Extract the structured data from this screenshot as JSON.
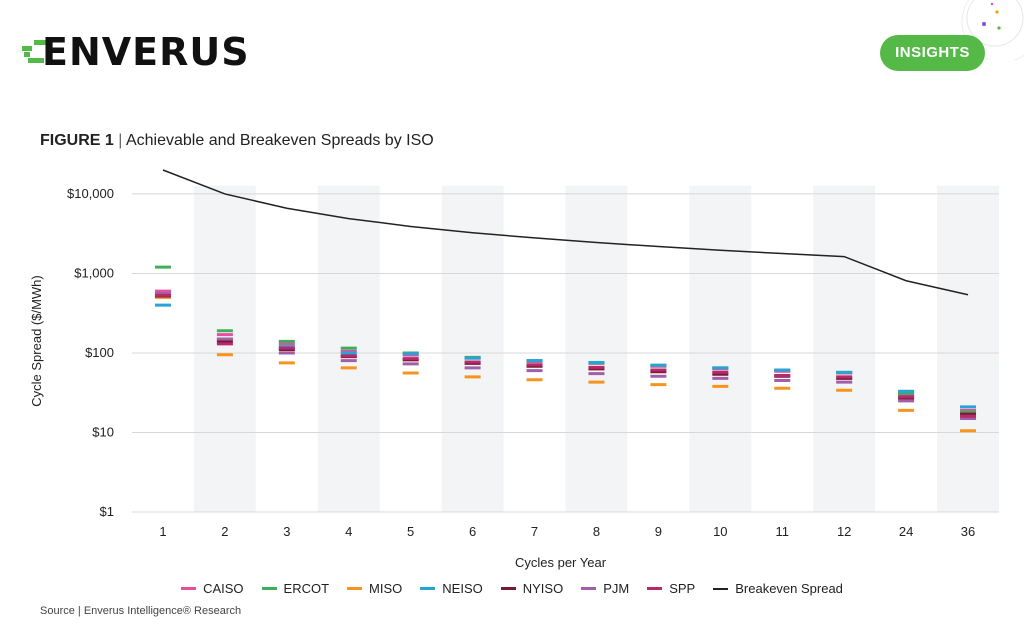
{
  "brand": {
    "logo_text": "ENVERUS",
    "logo_green": "#55b947",
    "badge_label": "INSIGHTS"
  },
  "figure": {
    "label": "FIGURE 1",
    "separator": "|",
    "title": "Achievable and Breakeven Spreads by ISO"
  },
  "source": "Source | Enverus Intelligence® Research",
  "chart_data": {
    "type": "scatter",
    "title": "Achievable and Breakeven Spreads by ISO",
    "xlabel": "Cycles per Year",
    "ylabel": "Cycle Spread ($/MWh)",
    "yscale": "log",
    "ylim": [
      1,
      20000
    ],
    "yticks": [
      1,
      10,
      100,
      1000,
      10000
    ],
    "ytick_labels": [
      "$1",
      "$10",
      "$100",
      "$1,000",
      "$10,000"
    ],
    "categories": [
      "1",
      "2",
      "3",
      "4",
      "5",
      "6",
      "7",
      "8",
      "9",
      "10",
      "11",
      "12",
      "24",
      "36"
    ],
    "series": [
      {
        "name": "CAISO",
        "color": "#e54fa0",
        "marker": "dash",
        "values": [
          600,
          170,
          130,
          105,
          94,
          86,
          78,
          74,
          68,
          63,
          59,
          56,
          30,
          19
        ]
      },
      {
        "name": "ERCOT",
        "color": "#3fae5a",
        "marker": "dash",
        "values": [
          1200,
          190,
          140,
          115,
          100,
          88,
          80,
          75,
          70,
          65,
          61,
          57,
          31,
          18
        ]
      },
      {
        "name": "MISO",
        "color": "#f7941d",
        "marker": "dash",
        "values": [
          500,
          95,
          75,
          65,
          56,
          50,
          46,
          43,
          40,
          38,
          36,
          34,
          19,
          10.5
        ]
      },
      {
        "name": "NEISO",
        "color": "#27a3d5",
        "marker": "dash",
        "values": [
          400,
          150,
          120,
          100,
          98,
          86,
          80,
          76,
          70,
          65,
          61,
          57,
          33,
          21
        ]
      },
      {
        "name": "NYISO",
        "color": "#7a1a33",
        "marker": "dash",
        "values": [
          520,
          140,
          110,
          90,
          82,
          74,
          68,
          63,
          58,
          54,
          51,
          48,
          27,
          17
        ]
      },
      {
        "name": "PJM",
        "color": "#a35ea8",
        "marker": "dash",
        "values": [
          560,
          150,
          100,
          80,
          73,
          65,
          60,
          55,
          51,
          48,
          45,
          43,
          25,
          15
        ]
      },
      {
        "name": "SPP",
        "color": "#b52a6a",
        "marker": "dash",
        "values": [
          530,
          130,
          115,
          92,
          85,
          77,
          71,
          66,
          61,
          57,
          52,
          50,
          28,
          16
        ]
      },
      {
        "name": "Breakeven Spread",
        "color": "#222222",
        "marker": "line",
        "values": [
          20000,
          10000,
          6600,
          4900,
          3900,
          3250,
          2800,
          2450,
          2180,
          1960,
          1780,
          1630,
          810,
          540
        ]
      }
    ],
    "legend_position": "bottom",
    "grid": true
  }
}
